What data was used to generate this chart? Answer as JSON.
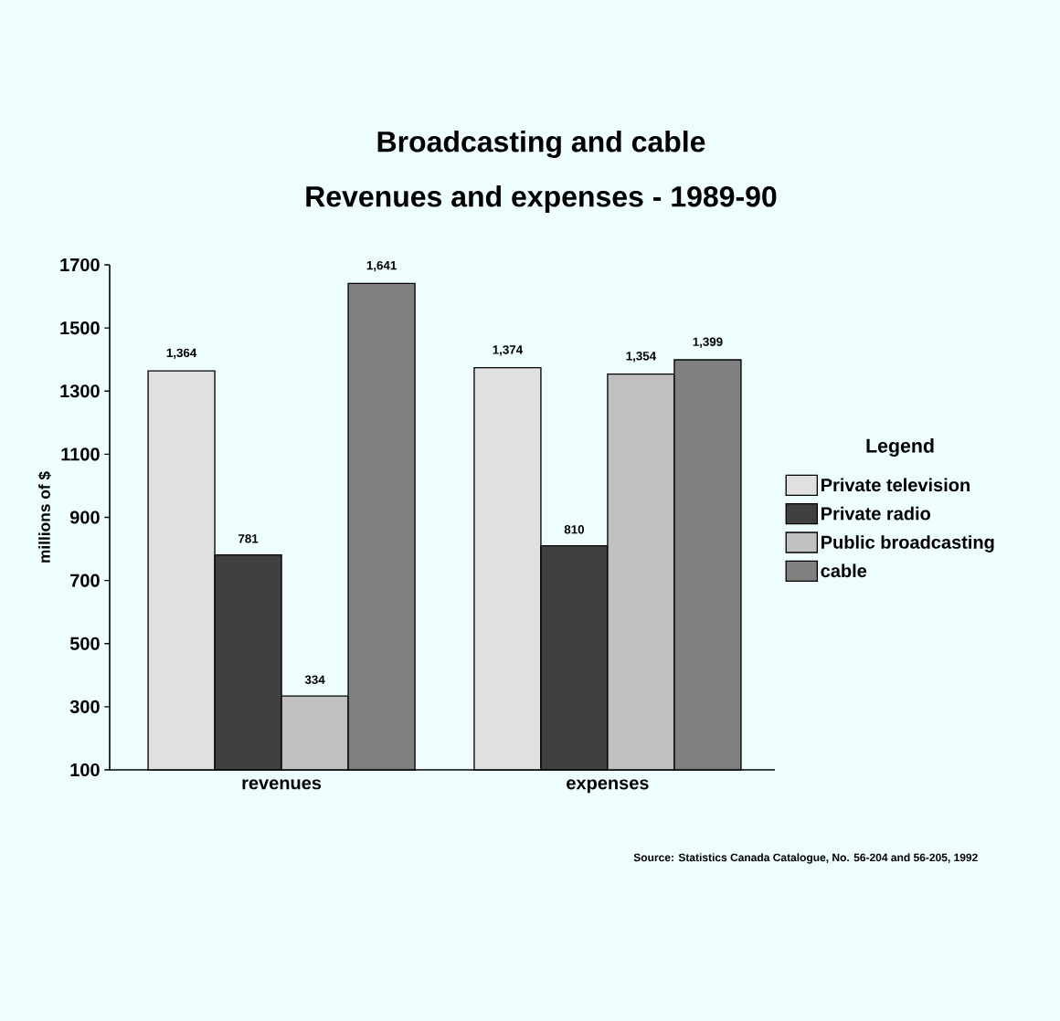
{
  "chart_data": {
    "type": "bar",
    "title": "Broadcasting and cable",
    "subtitle": "Revenues and expenses - 1989-90",
    "ylabel": "millions of $",
    "legend_title": "Legend",
    "legend": "right",
    "categories": [
      "revenues",
      "expenses"
    ],
    "series": [
      {
        "name": "Private television",
        "color": "#e0e0e0",
        "values": [
          1364,
          1374
        ],
        "value_labels": [
          "1,364",
          "1,374"
        ]
      },
      {
        "name": "Private radio",
        "color": "#404040",
        "values": [
          781,
          810
        ],
        "value_labels": [
          "781",
          "810"
        ]
      },
      {
        "name": "Public broadcasting",
        "color": "#c0c0c0",
        "values": [
          334,
          1354
        ],
        "value_labels": [
          "334",
          "1,354"
        ]
      },
      {
        "name": "cable",
        "color": "#808080",
        "values": [
          1641,
          1399
        ],
        "value_labels": [
          "1,641",
          "1,399"
        ]
      }
    ],
    "ylim": [
      100,
      1700
    ],
    "yticks": [
      100,
      300,
      500,
      700,
      900,
      1100,
      1300,
      1500,
      1700
    ],
    "grid": false,
    "annotations": [
      "Source: Statistics Canada Catalogue, No. 56-204 and 56-205, 1992"
    ]
  }
}
